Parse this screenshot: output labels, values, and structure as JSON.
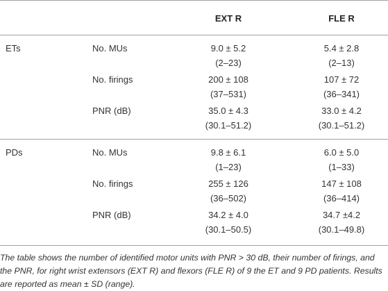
{
  "table": {
    "header": {
      "col1": "EXT R",
      "col2": "FLE R"
    },
    "groups": [
      {
        "label": "ETs",
        "rows": [
          {
            "label": "No. MUs",
            "ext": [
              "9.0 ± 5.2",
              "(2–23)"
            ],
            "fle": [
              "5.4 ± 2.8",
              "(2–13)"
            ]
          },
          {
            "label": "No. firings",
            "ext": [
              "200 ± 108",
              "(37–531)"
            ],
            "fle": [
              "107 ± 72",
              "(36–341)"
            ]
          },
          {
            "label": "PNR (dB)",
            "ext": [
              "35.0 ± 4.3",
              "(30.1–51.2)"
            ],
            "fle": [
              "33.0 ± 4.2",
              "(30.1–51.2)"
            ]
          }
        ]
      },
      {
        "label": "PDs",
        "rows": [
          {
            "label": "No. MUs",
            "ext": [
              "9.8 ± 6.1",
              "(1–23)"
            ],
            "fle": [
              "6.0 ± 5.0",
              "(1–33)"
            ]
          },
          {
            "label": "No. firings",
            "ext": [
              "255 ± 126",
              "(36–502)"
            ],
            "fle": [
              "147 ± 108",
              "(36–414)"
            ]
          },
          {
            "label": "PNR (dB)",
            "ext": [
              "34.2 ± 4.0",
              "(30.1–50.5)"
            ],
            "fle": [
              "34.7 ±4.2",
              "(30.1–49.8)"
            ]
          }
        ]
      }
    ],
    "footnote": "The table shows the number of identified motor units with PNR > 30 dB, their number of firings, and the PNR, for right wrist extensors (EXT R) and flexors (FLE R) of 9 the ET and 9 PD patients. Results are reported as mean ± SD (range)."
  }
}
